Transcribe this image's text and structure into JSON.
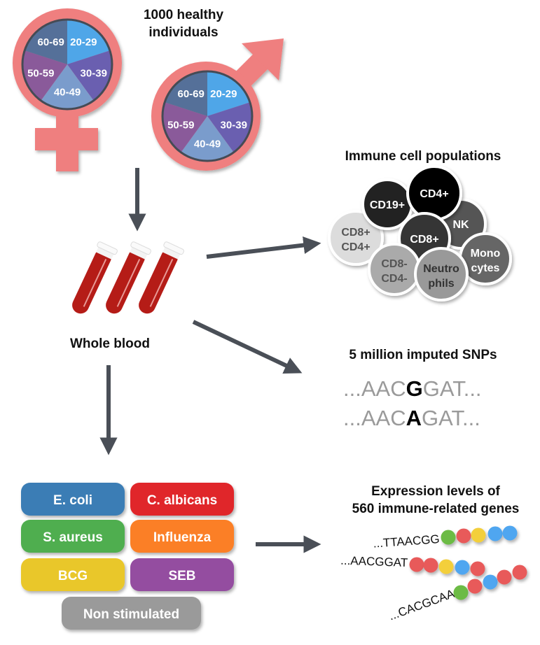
{
  "cohort": {
    "title_line1": "1000 healthy",
    "title_line2": "individuals",
    "symbol_color": "#ef7f7f",
    "age_groups": [
      {
        "label": "20-29",
        "color": "#4fa6e8"
      },
      {
        "label": "30-39",
        "color": "#6a5fb0"
      },
      {
        "label": "40-49",
        "color": "#7a9ccc"
      },
      {
        "label": "50-59",
        "color": "#8a5a9a"
      },
      {
        "label": "60-69",
        "color": "#557099"
      }
    ]
  },
  "sample": {
    "label": "Whole blood",
    "tube_color": "#b51c17"
  },
  "immune": {
    "title": "Immune cell populations",
    "cells": [
      {
        "line1": "CD8+",
        "line2": "CD4+",
        "color": "#dcdcdc",
        "text_color": "#555"
      },
      {
        "line1": "CD19+",
        "line2": "",
        "color": "#222222",
        "text_color": "#fff"
      },
      {
        "line1": "NK",
        "line2": "",
        "color": "#555555",
        "text_color": "#fff"
      },
      {
        "line1": "CD4+",
        "line2": "",
        "color": "#000000",
        "text_color": "#fff"
      },
      {
        "line1": "CD8+",
        "line2": "",
        "color": "#353535",
        "text_color": "#fff"
      },
      {
        "line1": "CD8-",
        "line2": "CD4-",
        "color": "#aaaaaa",
        "text_color": "#555"
      },
      {
        "line1": "Monocytes_1",
        "line2": "",
        "color": "#666666",
        "text_color": "#fff"
      },
      {
        "line1": "Neutro",
        "line2": "phils",
        "color": "#999999",
        "text_color": "#333"
      }
    ],
    "monocytes_line1": "Mono",
    "monocytes_line2": "cytes"
  },
  "snps": {
    "title": "5 million imputed SNPs",
    "seq1": {
      "prefix": "...AAC",
      "snp": "G",
      "suffix": "GAT..."
    },
    "seq2": {
      "prefix": "...AAC",
      "snp": "A",
      "suffix": "GAT..."
    }
  },
  "stimuli": [
    {
      "label": "E. coli",
      "color": "#3a7db5"
    },
    {
      "label": "C. albicans",
      "color": "#e0262b"
    },
    {
      "label": "S. aureus",
      "color": "#50ae4f"
    },
    {
      "label": "Influenza",
      "color": "#fb7f25"
    },
    {
      "label": "BCG",
      "color": "#e9c72c"
    },
    {
      "label": "SEB",
      "color": "#944ea0"
    },
    {
      "label": "Non stimulated",
      "color": "#9a9a9a"
    }
  ],
  "expression": {
    "title_line1": "Expression levels of",
    "title_line2": "560 immune-related genes",
    "genes": [
      {
        "seq": "...TTAACGG",
        "beads": [
          "#6cbb45",
          "#e85a5a",
          "#f3cf3a",
          "#4fa6f0",
          "#4fa6f0"
        ]
      },
      {
        "seq": "...AACGGAT",
        "beads": [
          "#e85a5a",
          "#e85a5a",
          "#f3cf3a",
          "#4fa6f0",
          "#e85a5a"
        ]
      },
      {
        "seq": "...CACGCAA",
        "beads": [
          "#6cbb45",
          "#e85a5a",
          "#4fa6f0",
          "#e85a5a",
          "#e85a5a"
        ]
      }
    ]
  },
  "arrow_color": "#4a4f57"
}
